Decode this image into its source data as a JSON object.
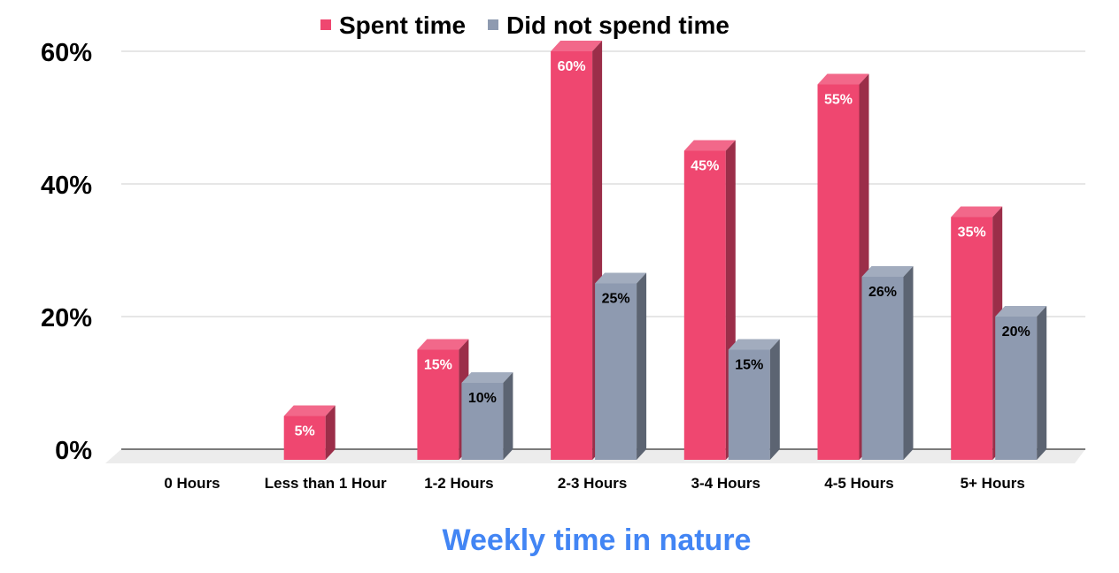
{
  "chart_data": {
    "type": "bar",
    "title": "",
    "xlabel": "Weekly time in nature",
    "ylabel": "",
    "categories": [
      "0 Hours",
      "Less than 1 Hour",
      "1-2 Hours",
      "2-3 Hours",
      "3-4 Hours",
      "4-5 Hours",
      "5+ Hours"
    ],
    "series": [
      {
        "name": "Spent time",
        "color": "#ef4770",
        "values": [
          0,
          5,
          15,
          60,
          45,
          55,
          35
        ],
        "labels": [
          "",
          "5%",
          "15%",
          "60%",
          "45%",
          "55%",
          "35%"
        ]
      },
      {
        "name": "Did not spend time",
        "color": "#8e9ab0",
        "values": [
          0,
          0,
          10,
          25,
          15,
          26,
          20
        ],
        "labels": [
          "",
          "",
          "10%",
          "25%",
          "15%",
          "26%",
          "20%"
        ]
      }
    ],
    "ylim": [
      0,
      60
    ],
    "yticks": [
      "0%",
      "20%",
      "40%",
      "60%"
    ],
    "ytick_values": [
      0,
      20,
      40,
      60
    ],
    "grid": true,
    "legend": "top-center",
    "style": "3d-column",
    "xlabel_color": "#4285f4"
  }
}
